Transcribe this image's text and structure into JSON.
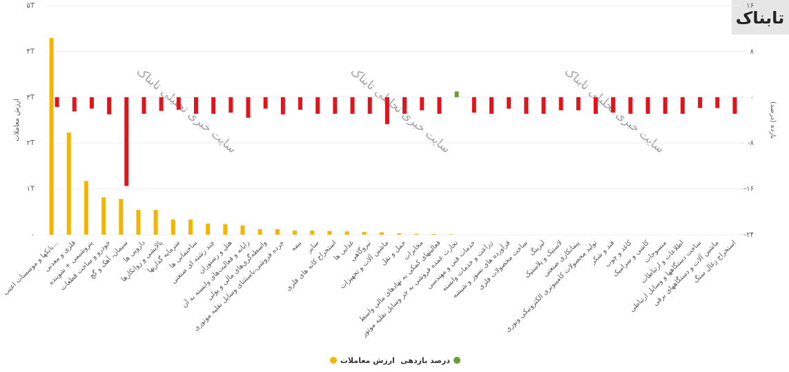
{
  "chart_data": {
    "type": "bar",
    "logo": "تابناک",
    "watermark": "سایت خبری تحلیلی تابناک",
    "y_label": "ارزش معاملات",
    "y2_label": "بازده (درصد)",
    "categories": [
      "بانکها و موسسات اعتب...",
      "فلزی و معدنی",
      "پتروشیمی + شوینده",
      "خودرو و ساخت قطعات",
      "سیمان، آهک و گچ",
      "دارویی ها",
      "پالایشی و روانکارها",
      "سرمایه گذاریها",
      "ساختمانی ها",
      "چند رشته ای صنعتی",
      "هتل و رستوران",
      "رایانه و فعالیت‌های وابسته به آن",
      "واسطه‌گری‌های مالی و پولی",
      "خرده فروشی،باستثنای وسایل نقلیه موتوری",
      "بیمه",
      "سایر",
      "استخراج کانه های فلزی",
      "غذایی ها",
      "نیروگاهی",
      "ماشین آلات و تجهیزات",
      "حمل و نقل",
      "مخابرات",
      "فعالیتهای کمکی به نهادهای مالی واسط",
      "تجارت عمده فروشی به جز وسایل نقلیه موتور",
      "خدمات فنی و مهندسی",
      "زراعت و خدمات وابسته",
      "فرآورده های نسوز و شیشه",
      "ساخت محصولات فلزی",
      "لیزینگ",
      "لاستیک و پلاستیک",
      "پیمانکاری صنعتی",
      "تولید محصولات کامپیوتری الکترونیکی ونوری",
      "قند و شکر",
      "کاغذ و چوب",
      "کاشی و سرامیک",
      "منسوجات",
      "اطلاعات و ارتباطات",
      "ساخت دستگاهها و وسایل ارتباطی",
      "ماشین آلات و دستگاههای برقی",
      "استخراج زغال سنگ"
    ],
    "series": [
      {
        "name": "ارزش معاملات",
        "color": "#f4b400",
        "values": [
          4.29,
          2.23,
          1.17,
          0.81,
          0.78,
          0.54,
          0.54,
          0.33,
          0.33,
          0.24,
          0.23,
          0.2,
          0.12,
          0.12,
          0.09,
          0.09,
          0.08,
          0.07,
          0.06,
          0.05,
          0.03,
          0.02,
          0.015,
          0.01,
          0,
          0,
          0,
          0,
          0,
          0,
          0,
          0,
          0,
          0,
          0,
          0,
          0,
          0,
          0,
          0
        ]
      },
      {
        "name": "درصد بازدهی",
        "color": "#6b9a3a",
        "negative_color": "#e0141c",
        "axis": "y2",
        "values": [
          -1.7,
          -2.5,
          -2.0,
          -3.0,
          -15.5,
          -2.9,
          -2.4,
          -2.2,
          -2.9,
          -2.9,
          -2.7,
          -3.6,
          -2.0,
          -3.0,
          -2.2,
          -2.9,
          -2.9,
          -2.9,
          -2.9,
          -4.7,
          -2.9,
          -2.3,
          -2.9,
          1.0,
          -2.7,
          -2.9,
          -2.0,
          -2.9,
          -2.9,
          -2.3,
          -2.3,
          -2.9,
          -2.7,
          -2.9,
          -2.9,
          -2.9,
          -2.9,
          -1.9,
          -1.9,
          -2.9
        ]
      }
    ],
    "ylim": [
      0,
      5
    ],
    "yticks": [
      {
        "value": 0,
        "label": "۰"
      },
      {
        "value": 1,
        "label": "۱T"
      },
      {
        "value": 2,
        "label": "۲T"
      },
      {
        "value": 3,
        "label": "۳T"
      },
      {
        "value": 4,
        "label": "۴T"
      },
      {
        "value": 5,
        "label": "۵T"
      }
    ],
    "y2lim": [
      -24,
      16
    ],
    "y2ticks": [
      {
        "value": 16,
        "label": "۱۶"
      },
      {
        "value": 8,
        "label": "۸"
      },
      {
        "value": 0,
        "label": "۰"
      },
      {
        "value": -8,
        "label": "-۸"
      },
      {
        "value": -16,
        "label": "-۱۶"
      },
      {
        "value": -24,
        "label": "-۲۴"
      }
    ],
    "grid": true
  }
}
